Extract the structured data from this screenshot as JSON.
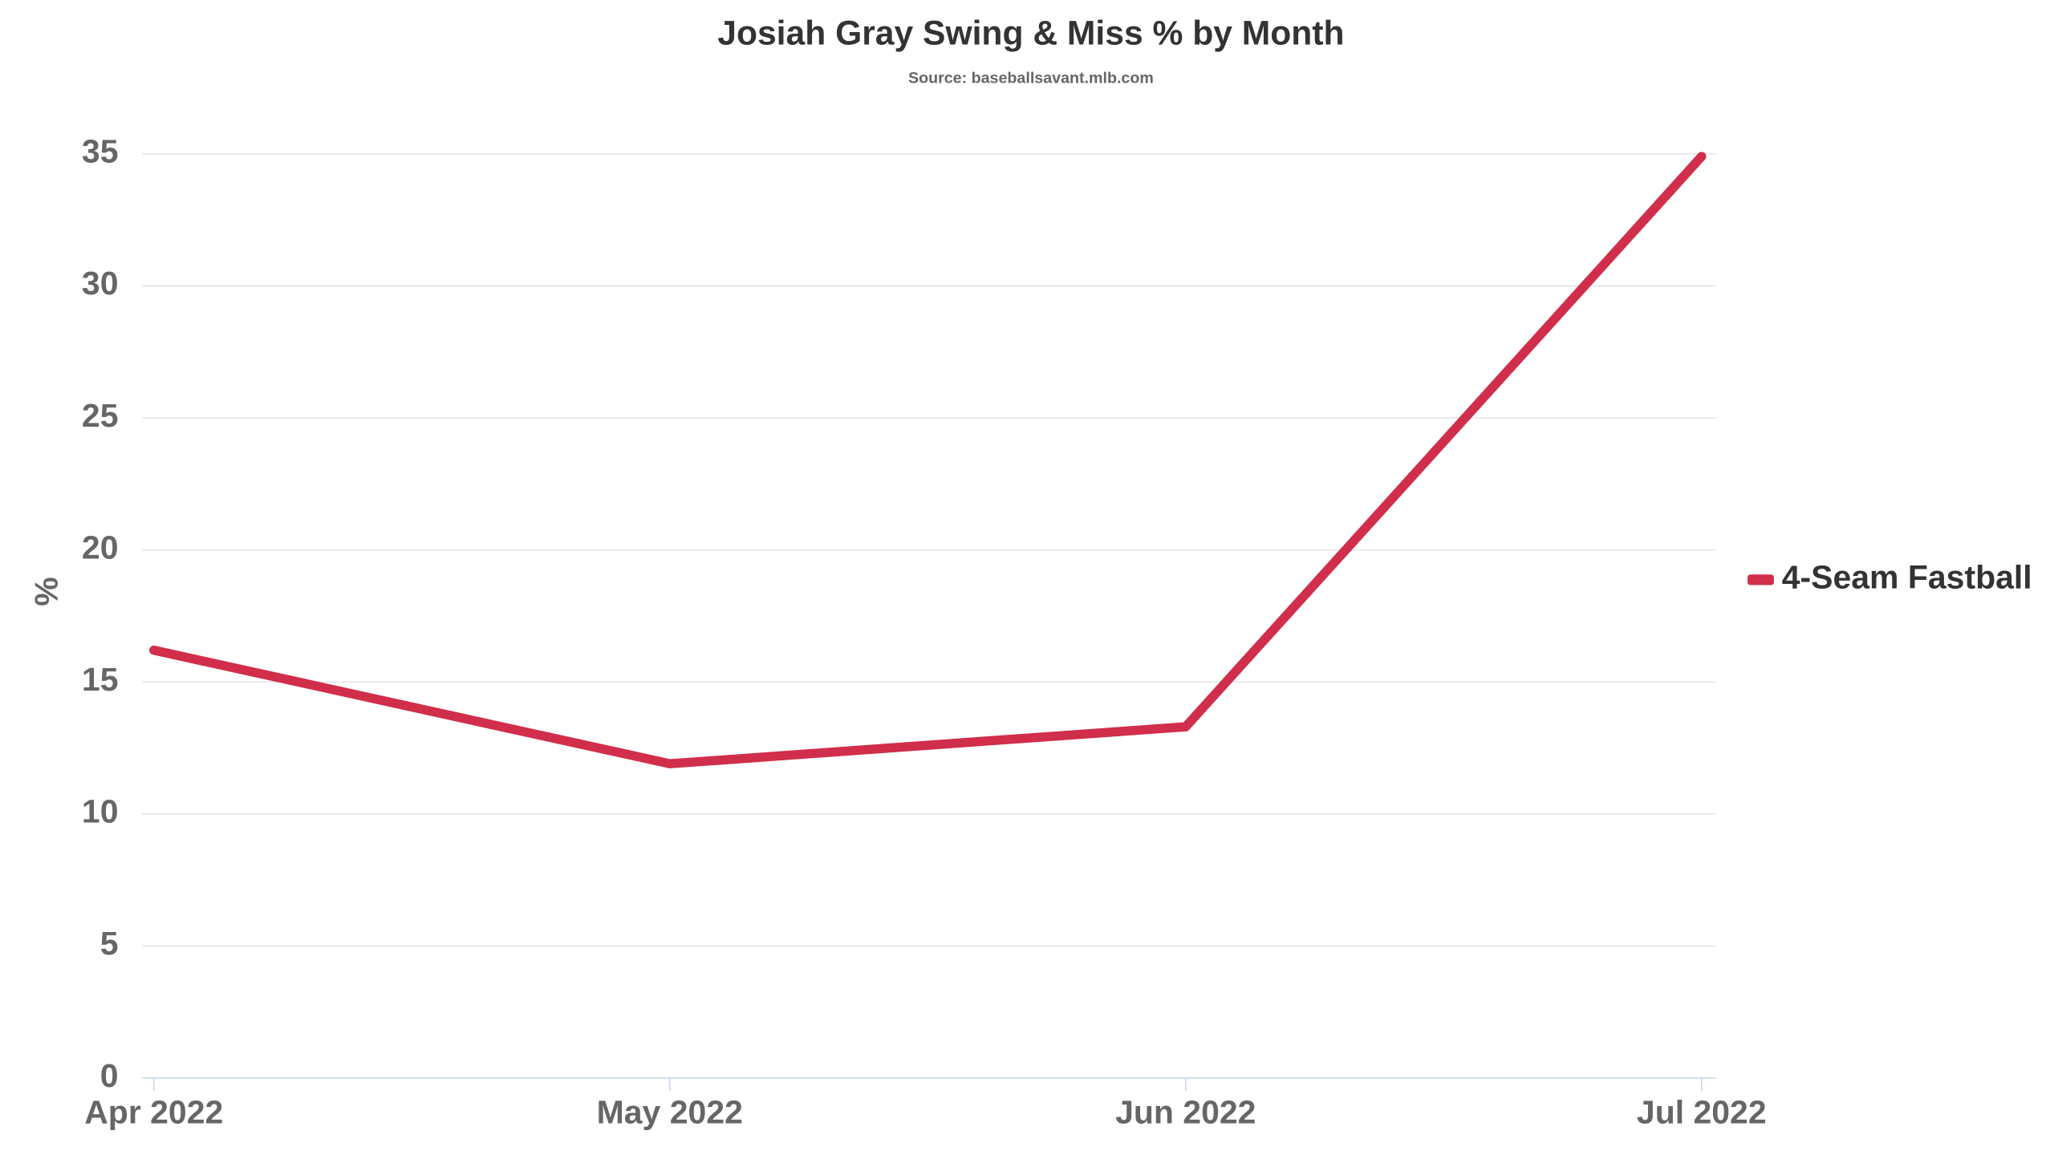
{
  "chart_data": {
    "type": "line",
    "title": "Josiah Gray Swing & Miss % by Month",
    "subtitle": "Source: baseballsavant.mlb.com",
    "y_label": "%",
    "categories": [
      "Apr 2022",
      "May 2022",
      "Jun 2022",
      "Jul 2022"
    ],
    "series": [
      {
        "name": "4-Seam Fastball",
        "color": "#d12e4b",
        "values": [
          16.2,
          11.9,
          13.3,
          34.9
        ]
      }
    ],
    "ylim": [
      0,
      35
    ],
    "yticks": [
      0,
      5,
      10,
      15,
      20,
      25,
      30,
      35
    ],
    "grid": true,
    "legend": "right"
  }
}
